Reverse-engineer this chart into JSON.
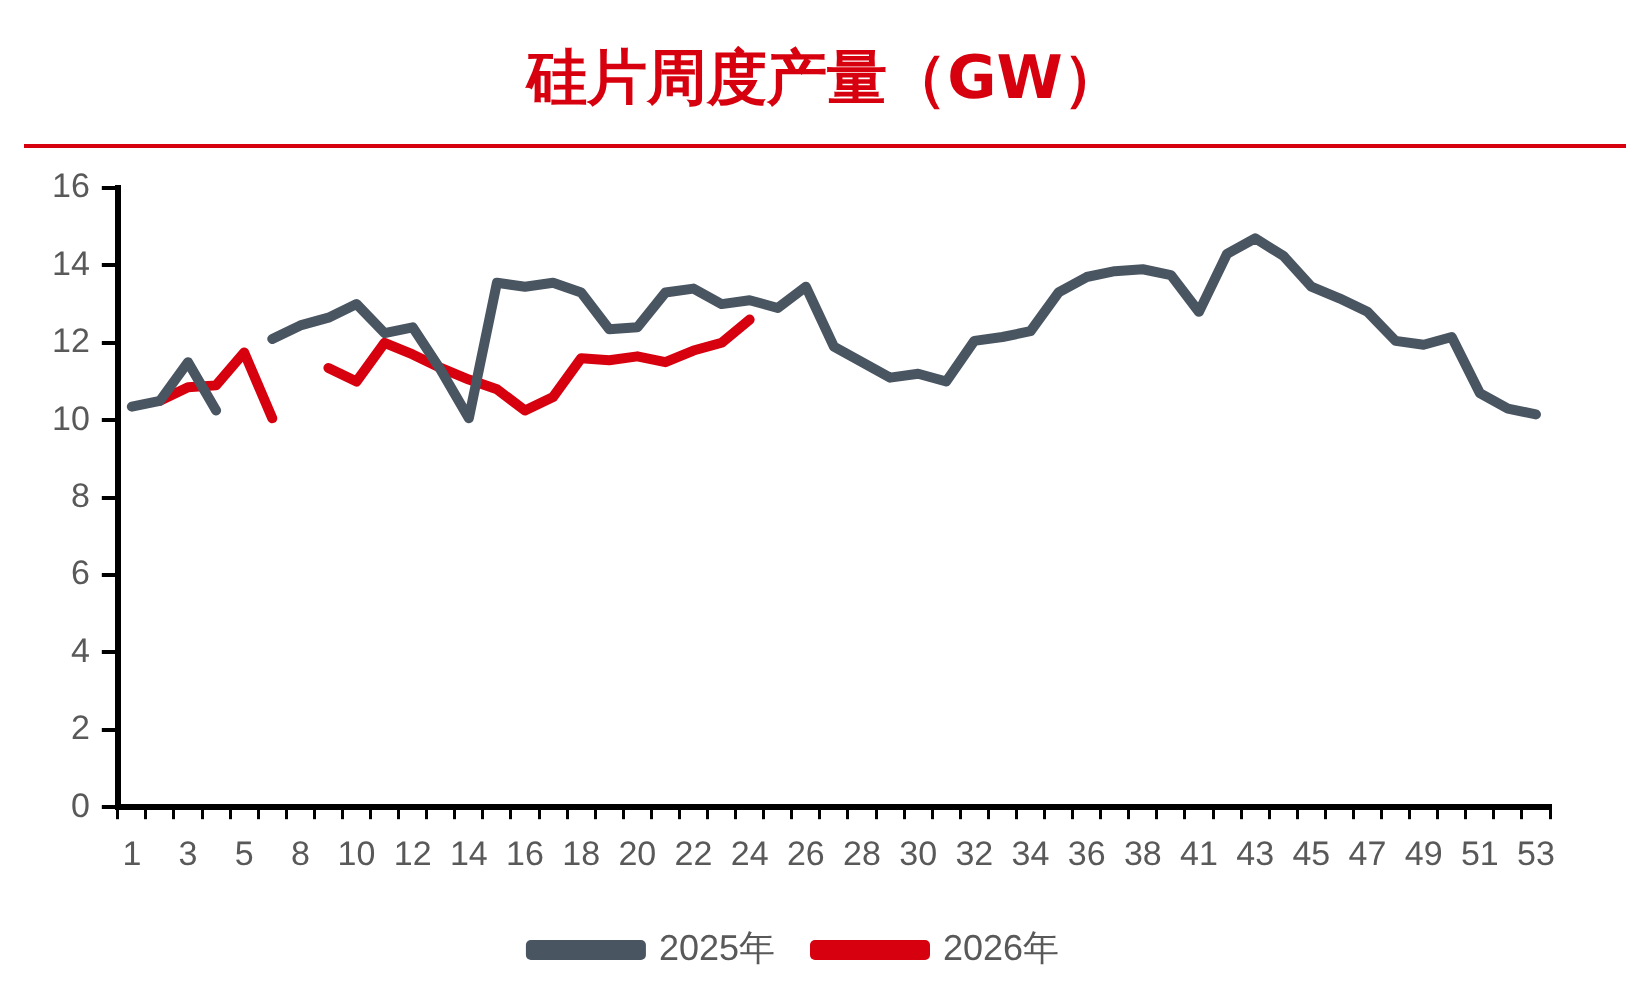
{
  "chart_data": {
    "type": "line",
    "title": "硅片周度产量（GW）",
    "categories": [
      "1",
      null,
      "3",
      null,
      "5",
      null,
      "8",
      null,
      "10",
      null,
      "12",
      null,
      "14",
      null,
      "16",
      null,
      "18",
      null,
      "20",
      null,
      "22",
      null,
      "24",
      null,
      "26",
      null,
      "28",
      null,
      "30",
      null,
      "32",
      null,
      "34",
      null,
      "36",
      null,
      "38",
      null,
      "41",
      null,
      "43",
      null,
      "45",
      null,
      "47",
      null,
      "49",
      null,
      "51",
      null,
      "53"
    ],
    "series": [
      {
        "name": "2025年",
        "color": "#4a5562",
        "values": [
          10.35,
          10.5,
          11.5,
          10.25,
          null,
          12.1,
          12.45,
          12.65,
          13.0,
          12.25,
          12.4,
          11.3,
          10.05,
          13.55,
          13.45,
          13.55,
          13.3,
          12.35,
          12.4,
          13.3,
          13.4,
          13.0,
          13.1,
          12.9,
          13.45,
          11.9,
          11.5,
          11.1,
          11.2,
          11.0,
          12.05,
          12.15,
          12.3,
          13.3,
          13.7,
          13.85,
          13.9,
          13.75,
          12.8,
          14.3,
          14.7,
          14.25,
          13.45,
          13.15,
          12.8,
          12.05,
          11.95,
          12.15,
          10.7,
          10.3,
          10.15
        ]
      },
      {
        "name": "2026年",
        "color": "#d7000f",
        "values": [
          null,
          10.5,
          10.85,
          10.9,
          11.75,
          10.05,
          null,
          11.35,
          11.0,
          12.0,
          11.7,
          11.35,
          11.05,
          10.8,
          10.25,
          10.6,
          11.6,
          11.55,
          11.65,
          11.5,
          11.8,
          12.0,
          12.6,
          null,
          null,
          null,
          null,
          null,
          null,
          null,
          null,
          null,
          null,
          null,
          null,
          null,
          null,
          null,
          null,
          null,
          null,
          null,
          null,
          null,
          null,
          null,
          null,
          null,
          null,
          null,
          null
        ]
      }
    ],
    "ylim": [
      0,
      16
    ],
    "yticks": [
      0,
      2,
      4,
      6,
      8,
      10,
      12,
      14,
      16
    ],
    "legend": "bottom",
    "marker": "none",
    "line_style": "solid"
  }
}
